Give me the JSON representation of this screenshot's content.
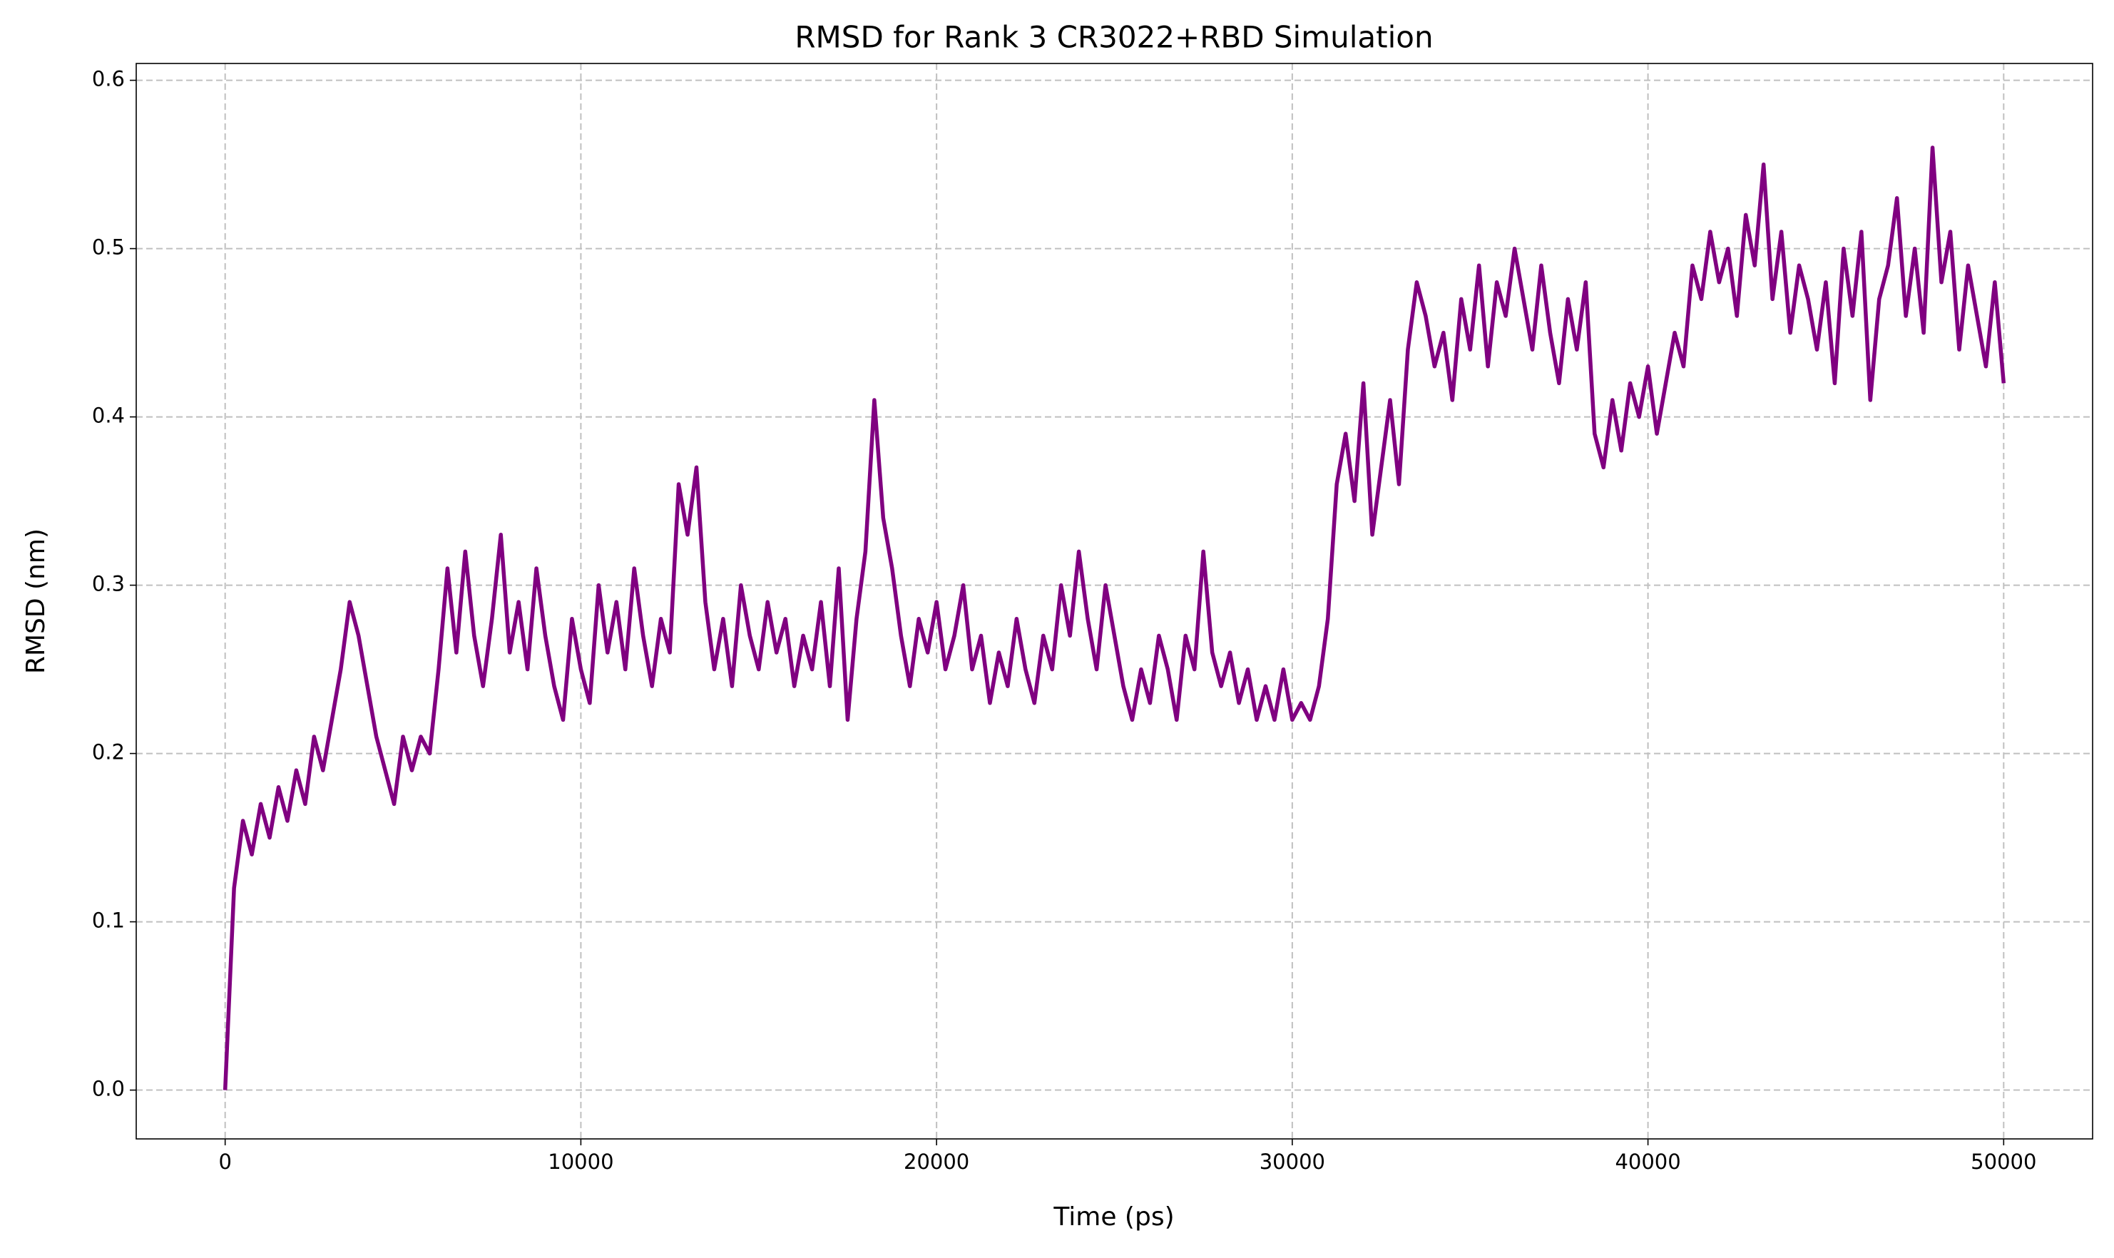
{
  "chart_data": {
    "type": "line",
    "title": "RMSD for Rank 3 CR3022+RBD Simulation",
    "xlabel": "Time (ps)",
    "ylabel": "RMSD (nm)",
    "x": [
      0,
      250,
      500,
      750,
      1000,
      1250,
      1500,
      1750,
      2000,
      2250,
      2500,
      2750,
      3000,
      3250,
      3500,
      3750,
      4000,
      4250,
      4500,
      4750,
      5000,
      5250,
      5500,
      5750,
      6000,
      6250,
      6500,
      6750,
      7000,
      7250,
      7500,
      7750,
      8000,
      8250,
      8500,
      8750,
      9000,
      9250,
      9500,
      9750,
      10000,
      10250,
      10500,
      10750,
      11000,
      11250,
      11500,
      11750,
      12000,
      12250,
      12500,
      12750,
      13000,
      13250,
      13500,
      13750,
      14000,
      14250,
      14500,
      14750,
      15000,
      15250,
      15500,
      15750,
      16000,
      16250,
      16500,
      16750,
      17000,
      17250,
      17500,
      17750,
      18000,
      18250,
      18500,
      18750,
      19000,
      19250,
      19500,
      19750,
      20000,
      20250,
      20500,
      20750,
      21000,
      21250,
      21500,
      21750,
      22000,
      22250,
      22500,
      22750,
      23000,
      23250,
      23500,
      23750,
      24000,
      24250,
      24500,
      24750,
      25000,
      25250,
      25500,
      25750,
      26000,
      26250,
      26500,
      26750,
      27000,
      27250,
      27500,
      27750,
      28000,
      28250,
      28500,
      28750,
      29000,
      29250,
      29500,
      29750,
      30000,
      30250,
      30500,
      30750,
      31000,
      31250,
      31500,
      31750,
      32000,
      32250,
      32500,
      32750,
      33000,
      33250,
      33500,
      33750,
      34000,
      34250,
      34500,
      34750,
      35000,
      35250,
      35500,
      35750,
      36000,
      36250,
      36500,
      36750,
      37000,
      37250,
      37500,
      37750,
      38000,
      38250,
      38500,
      38750,
      39000,
      39250,
      39500,
      39750,
      40000,
      40250,
      40500,
      40750,
      41000,
      41250,
      41500,
      41750,
      42000,
      42250,
      42500,
      42750,
      43000,
      43250,
      43500,
      43750,
      44000,
      44250,
      44500,
      44750,
      45000,
      45250,
      45500,
      45750,
      46000,
      46250,
      46500,
      46750,
      47000,
      47250,
      47500,
      47750,
      48000,
      48250,
      48500,
      48750,
      49000,
      49250,
      49500,
      49750,
      50000
    ],
    "series": [
      {
        "color": "#800080",
        "values": [
          0,
          0.12,
          0.16,
          0.14,
          0.17,
          0.15,
          0.18,
          0.16,
          0.19,
          0.17,
          0.21,
          0.19,
          0.22,
          0.25,
          0.29,
          0.27,
          0.24,
          0.21,
          0.19,
          0.17,
          0.21,
          0.19,
          0.21,
          0.2,
          0.25,
          0.31,
          0.26,
          0.32,
          0.27,
          0.24,
          0.28,
          0.33,
          0.26,
          0.29,
          0.25,
          0.31,
          0.27,
          0.24,
          0.22,
          0.28,
          0.25,
          0.23,
          0.3,
          0.26,
          0.29,
          0.25,
          0.31,
          0.27,
          0.24,
          0.28,
          0.26,
          0.36,
          0.33,
          0.37,
          0.29,
          0.25,
          0.28,
          0.24,
          0.3,
          0.27,
          0.25,
          0.29,
          0.26,
          0.28,
          0.24,
          0.27,
          0.25,
          0.29,
          0.24,
          0.31,
          0.22,
          0.28,
          0.32,
          0.41,
          0.34,
          0.31,
          0.27,
          0.24,
          0.28,
          0.26,
          0.29,
          0.25,
          0.27,
          0.3,
          0.25,
          0.27,
          0.23,
          0.26,
          0.24,
          0.28,
          0.25,
          0.23,
          0.27,
          0.25,
          0.3,
          0.27,
          0.32,
          0.28,
          0.25,
          0.3,
          0.27,
          0.24,
          0.22,
          0.25,
          0.23,
          0.27,
          0.25,
          0.22,
          0.27,
          0.25,
          0.32,
          0.26,
          0.24,
          0.26,
          0.23,
          0.25,
          0.22,
          0.24,
          0.22,
          0.25,
          0.22,
          0.23,
          0.22,
          0.24,
          0.28,
          0.36,
          0.39,
          0.35,
          0.42,
          0.33,
          0.37,
          0.41,
          0.36,
          0.44,
          0.48,
          0.46,
          0.43,
          0.45,
          0.41,
          0.47,
          0.44,
          0.49,
          0.43,
          0.48,
          0.46,
          0.5,
          0.47,
          0.44,
          0.49,
          0.45,
          0.42,
          0.47,
          0.44,
          0.48,
          0.39,
          0.37,
          0.41,
          0.38,
          0.42,
          0.4,
          0.43,
          0.39,
          0.42,
          0.45,
          0.43,
          0.49,
          0.47,
          0.51,
          0.48,
          0.5,
          0.46,
          0.52,
          0.49,
          0.55,
          0.47,
          0.51,
          0.45,
          0.49,
          0.47,
          0.44,
          0.48,
          0.42,
          0.5,
          0.46,
          0.51,
          0.41,
          0.47,
          0.49,
          0.53,
          0.46,
          0.5,
          0.45,
          0.56,
          0.48,
          0.51,
          0.44,
          0.49,
          0.46,
          0.43,
          0.48,
          0.42
        ]
      }
    ],
    "xlim": [
      -2500,
      52500
    ],
    "xticks": [
      0,
      10000,
      20000,
      30000,
      40000,
      50000
    ],
    "ylim": [
      -0.029,
      0.61
    ],
    "yticks": [
      {
        "value": 0,
        "label": "0.0"
      },
      0.1,
      0.2,
      0.3,
      0.4,
      0.5,
      0.6
    ],
    "grid": true
  }
}
